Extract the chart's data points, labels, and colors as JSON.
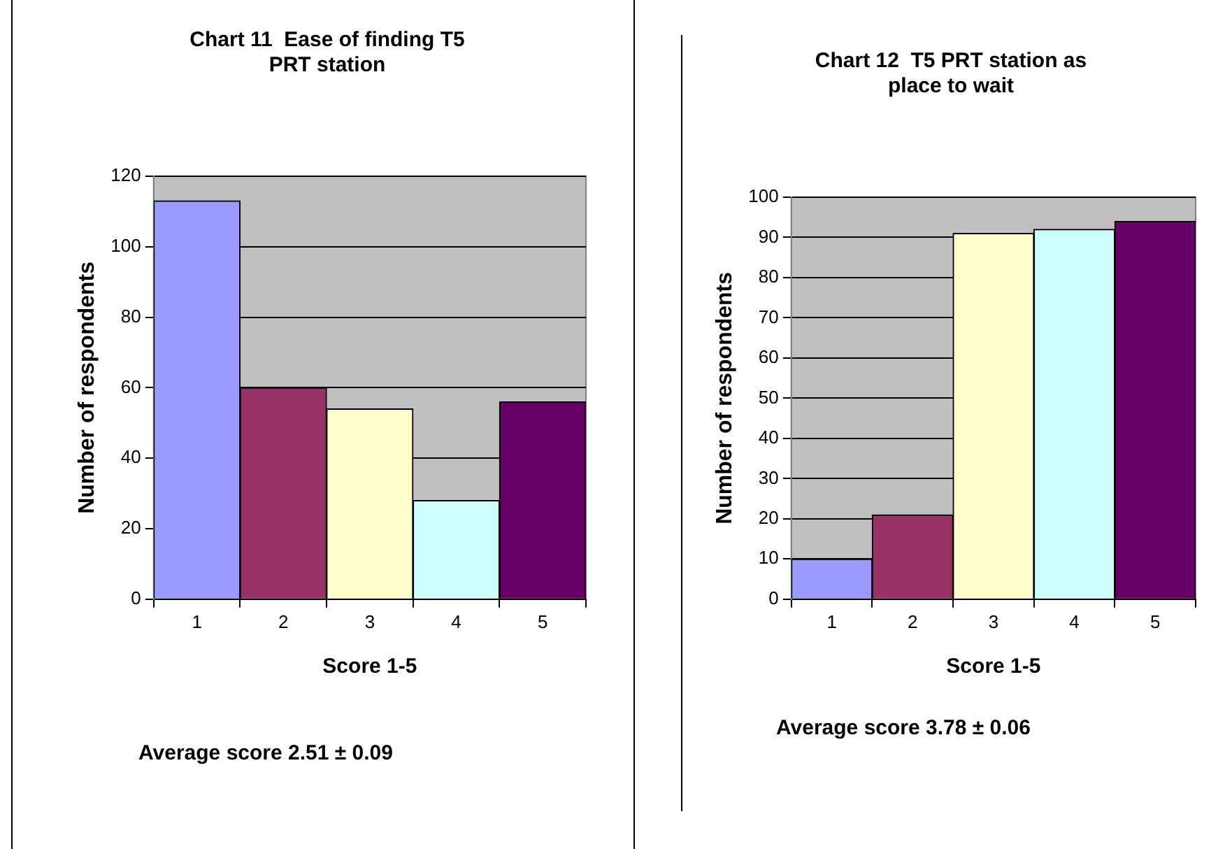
{
  "chart_data": [
    {
      "type": "bar",
      "title": "Chart 11  Ease of finding T5 PRT station",
      "xlabel": "Score 1-5",
      "ylabel": "Number of respondents",
      "categories": [
        "1",
        "2",
        "3",
        "4",
        "5"
      ],
      "values": [
        113,
        60,
        54,
        28,
        56
      ],
      "colors": [
        "#9999ff",
        "#993366",
        "#ffffcc",
        "#ccffff",
        "#660066"
      ],
      "ylim": [
        0,
        120
      ],
      "yticks": [
        0,
        20,
        40,
        60,
        80,
        100,
        120
      ],
      "grid": "y",
      "annotations": [
        "Average score 2.51 ± 0.09"
      ]
    },
    {
      "type": "bar",
      "title": "Chart 12  T5 PRT station as place to wait",
      "xlabel": "Score 1-5",
      "ylabel": "Number of respondents",
      "categories": [
        "1",
        "2",
        "3",
        "4",
        "5"
      ],
      "values": [
        10,
        21,
        91,
        92,
        94
      ],
      "colors": [
        "#9999ff",
        "#993366",
        "#ffffcc",
        "#ccffff",
        "#660066"
      ],
      "ylim": [
        0,
        100
      ],
      "yticks": [
        0,
        10,
        20,
        30,
        40,
        50,
        60,
        70,
        80,
        90,
        100
      ],
      "grid": "y",
      "annotations": [
        "Average score 3.78 ± 0.06"
      ]
    }
  ]
}
